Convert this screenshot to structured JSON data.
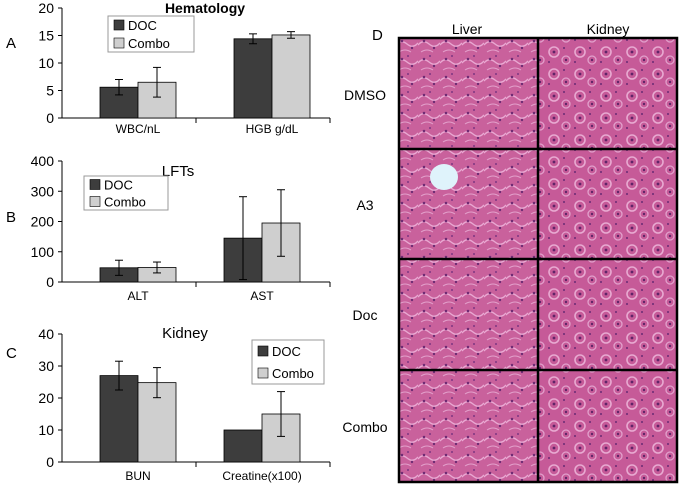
{
  "panel_letters": [
    "A",
    "B",
    "C",
    "D"
  ],
  "colors": {
    "doc": "#3d3d3d",
    "combo": "#cfcfcf",
    "axis": "#000000",
    "tissue_bg": "#c9619c",
    "tissue_light": "#e6a6cf",
    "tissue_dark": "#7a2f7a"
  },
  "chart_data": [
    {
      "type": "bar",
      "title": "Hematology",
      "categories": [
        "WBC/nL",
        "HGB g/dL"
      ],
      "series": [
        {
          "name": "DOC",
          "values": [
            5.6,
            14.4
          ],
          "errors": [
            1.4,
            0.9
          ]
        },
        {
          "name": "Combo",
          "values": [
            6.5,
            15.1
          ],
          "errors": [
            2.7,
            0.6
          ]
        }
      ],
      "ylim": [
        0,
        20
      ],
      "yticks": [
        0,
        5,
        10,
        15,
        20
      ],
      "legend": "top-left"
    },
    {
      "type": "bar",
      "title": "LFTs",
      "categories": [
        "ALT",
        "AST"
      ],
      "series": [
        {
          "name": "DOC",
          "values": [
            47,
            145
          ],
          "errors": [
            25,
            137
          ]
        },
        {
          "name": "Combo",
          "values": [
            48,
            195
          ],
          "errors": [
            18,
            110
          ]
        }
      ],
      "ylim": [
        0,
        400
      ],
      "yticks": [
        0,
        100,
        200,
        300,
        400
      ],
      "legend": "top-left"
    },
    {
      "type": "bar",
      "title": "Kidney",
      "categories": [
        "BUN",
        "Creatine(x100)"
      ],
      "series": [
        {
          "name": "DOC",
          "values": [
            27,
            10
          ],
          "errors": [
            4.5,
            0
          ]
        },
        {
          "name": "Combo",
          "values": [
            24.8,
            15
          ],
          "errors": [
            4.7,
            7
          ]
        }
      ],
      "ylim": [
        0,
        40
      ],
      "yticks": [
        0,
        10,
        20,
        30,
        40
      ],
      "legend": "top-right"
    }
  ],
  "micrographs": {
    "columns": [
      "Liver",
      "Kidney"
    ],
    "rows": [
      "DMSO",
      "A3",
      "Doc",
      "Combo"
    ]
  }
}
